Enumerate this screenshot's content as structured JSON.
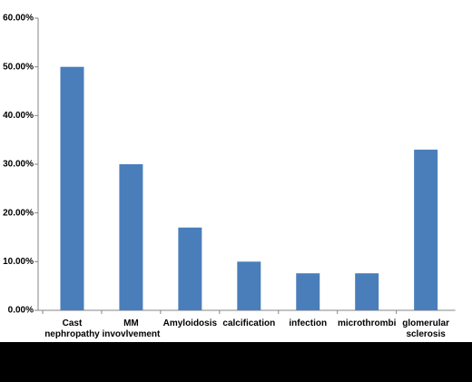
{
  "chart_data": {
    "type": "bar",
    "categories": [
      "Cast nephropathy",
      "MM invovlvement",
      "Amyloidosis",
      "calcification",
      "infection",
      "microthrombi",
      "glomerular sclerosis"
    ],
    "values": [
      50,
      30,
      17,
      10,
      7.6,
      7.6,
      33
    ],
    "color": "#4a7ebb",
    "ylim": [
      0,
      60
    ],
    "yticks": [
      {
        "value": 0,
        "label": "0.00%"
      },
      {
        "value": 10,
        "label": "10.00%"
      },
      {
        "value": 20,
        "label": "20.00%"
      },
      {
        "value": 30,
        "label": "30.00%"
      },
      {
        "value": 40,
        "label": "40.00%"
      },
      {
        "value": 50,
        "label": "50.00%"
      },
      {
        "value": 60,
        "label": "60.00%"
      }
    ],
    "grid": false
  }
}
